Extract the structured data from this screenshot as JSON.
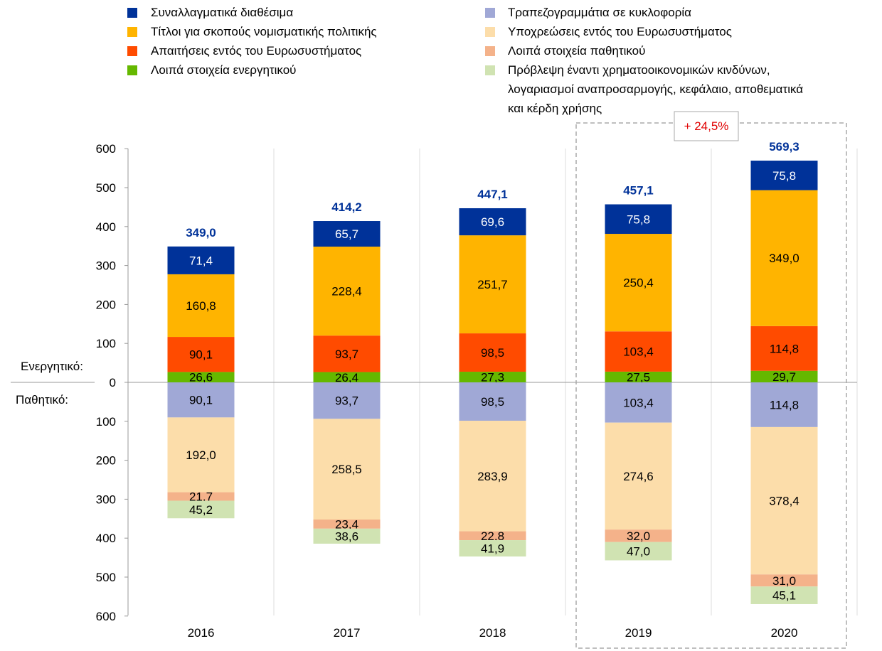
{
  "chart_data": {
    "type": "bar",
    "stacked": true,
    "categories": [
      "2016",
      "2017",
      "2018",
      "2019",
      "2020"
    ],
    "assets_label": "Ενεργητικό:",
    "liabilities_label": "Παθητικό:",
    "ylim": [
      -600,
      600
    ],
    "yticks": [
      "600",
      "500",
      "400",
      "300",
      "200",
      "100",
      "0",
      "100",
      "200",
      "300",
      "400",
      "500",
      "600"
    ],
    "totals": [
      "349,0",
      "414,2",
      "447,1",
      "457,1",
      "569,3"
    ],
    "annotation": "+ 24,5%",
    "assets": [
      {
        "name": "Λοιπά στοιχεία ενεργητικού",
        "color": "#65B800",
        "values": [
          26.6,
          26.4,
          27.3,
          27.5,
          29.7
        ]
      },
      {
        "name": "Απαιτήσεις εντός του Ευρωσυστήματος",
        "color": "#FF4B00",
        "values": [
          90.1,
          93.7,
          98.5,
          103.4,
          114.8
        ]
      },
      {
        "name": "Τίτλοι για σκοπούς νομισματικής πολιτικής",
        "color": "#FFB400",
        "values": [
          160.8,
          228.4,
          251.7,
          250.4,
          349.0
        ]
      },
      {
        "name": "Συναλλαγματικά διαθέσιμα",
        "color": "#003299",
        "values": [
          71.4,
          65.7,
          69.6,
          75.8,
          75.8
        ]
      }
    ],
    "liabilities": [
      {
        "name": "Τραπεζογραμμάτια σε κυκλοφορία",
        "color": "#A0A8D6",
        "values": [
          90.1,
          93.7,
          98.5,
          103.4,
          114.8
        ]
      },
      {
        "name": "Υποχρεώσεις εντός του Ευρωσυστήματος",
        "color": "#FCDDAA",
        "values": [
          192.0,
          258.5,
          283.9,
          274.6,
          378.4
        ]
      },
      {
        "name": "Λοιπά στοιχεία παθητικού",
        "color": "#F4B28A",
        "values": [
          21.7,
          23.4,
          22.8,
          32.0,
          31.0
        ]
      },
      {
        "name": "Πρόβλεψη έναντι χρηματοοικονομικών κινδύνων, λογαριασμοί αναπροσαρμογής, κεφάλαιο, αποθεματικά και κέρδη χρήσης",
        "color": "#D0E3B2",
        "values": [
          45.2,
          38.6,
          41.9,
          47.0,
          45.1
        ]
      }
    ],
    "legend": {
      "left": [
        "Συναλλαγματικά διαθέσιμα",
        "Τίτλοι για σκοπούς νομισματικής πολιτικής",
        "Απαιτήσεις εντός του Ευρωσυστήματος",
        "Λοιπά στοιχεία ενεργητικού"
      ],
      "right": [
        "Τραπεζογραμμάτια σε κυκλοφορία",
        "Υποχρεώσεις εντός του Ευρωσυστήματος",
        "Λοιπά στοιχεία παθητικού",
        "Πρόβλεψη έναντι χρηματοοικονομικών κινδύνων,",
        "λογαριασμοί αναπροσαρμογής, κεφάλαιο, αποθεματικά",
        "και κέρδη χρήσης"
      ],
      "placement": "top"
    }
  }
}
